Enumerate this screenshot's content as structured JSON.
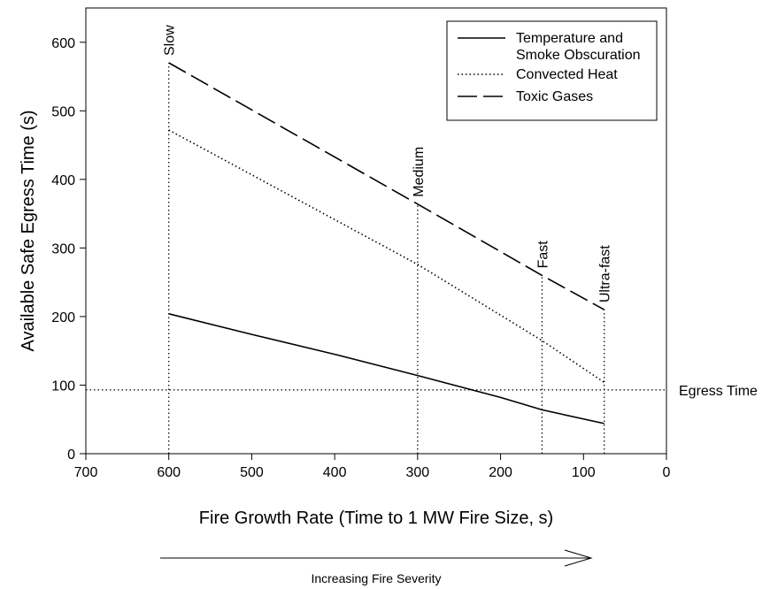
{
  "chart_data": {
    "type": "line",
    "title": "",
    "xlabel": "Fire Growth Rate (Time to 1 MW Fire Size, s)",
    "ylabel": "Available Safe Egress Time (s)",
    "xlim": [
      700,
      0
    ],
    "x_reversed": true,
    "ylim": [
      0,
      650
    ],
    "x_ticks": [
      700,
      600,
      500,
      400,
      300,
      200,
      100,
      0
    ],
    "y_ticks": [
      0,
      100,
      200,
      300,
      400,
      500,
      600
    ],
    "grid": false,
    "legend_position": "top-right",
    "series": [
      {
        "name": "Temperature and Smoke Obscuration",
        "style": "solid",
        "points": [
          [
            600,
            204
          ],
          [
            500,
            174
          ],
          [
            400,
            145
          ],
          [
            300,
            114
          ],
          [
            200,
            82
          ],
          [
            150,
            64
          ],
          [
            75,
            44
          ]
        ]
      },
      {
        "name": "Convected Heat",
        "style": "dotted",
        "points": [
          [
            600,
            472
          ],
          [
            300,
            276
          ],
          [
            150,
            165
          ],
          [
            75,
            104
          ]
        ]
      },
      {
        "name": "Toxic Gases",
        "style": "dashed",
        "points": [
          [
            600,
            570
          ],
          [
            300,
            364
          ],
          [
            150,
            260
          ],
          [
            75,
            210
          ]
        ]
      }
    ],
    "fire_growth_markers": [
      {
        "label": "Slow",
        "x": 600
      },
      {
        "label": "Medium",
        "x": 300
      },
      {
        "label": "Fast",
        "x": 150
      },
      {
        "label": "Ultra-fast",
        "x": 75
      }
    ],
    "reference_lines": [
      {
        "label": "Egress Time",
        "y": 93,
        "style": "dotted"
      }
    ],
    "annotations": [
      {
        "text": "Increasing Fire Severity",
        "type": "arrow",
        "direction": "right"
      }
    ],
    "colors": {
      "line": "#000000",
      "background": "#ffffff"
    }
  }
}
